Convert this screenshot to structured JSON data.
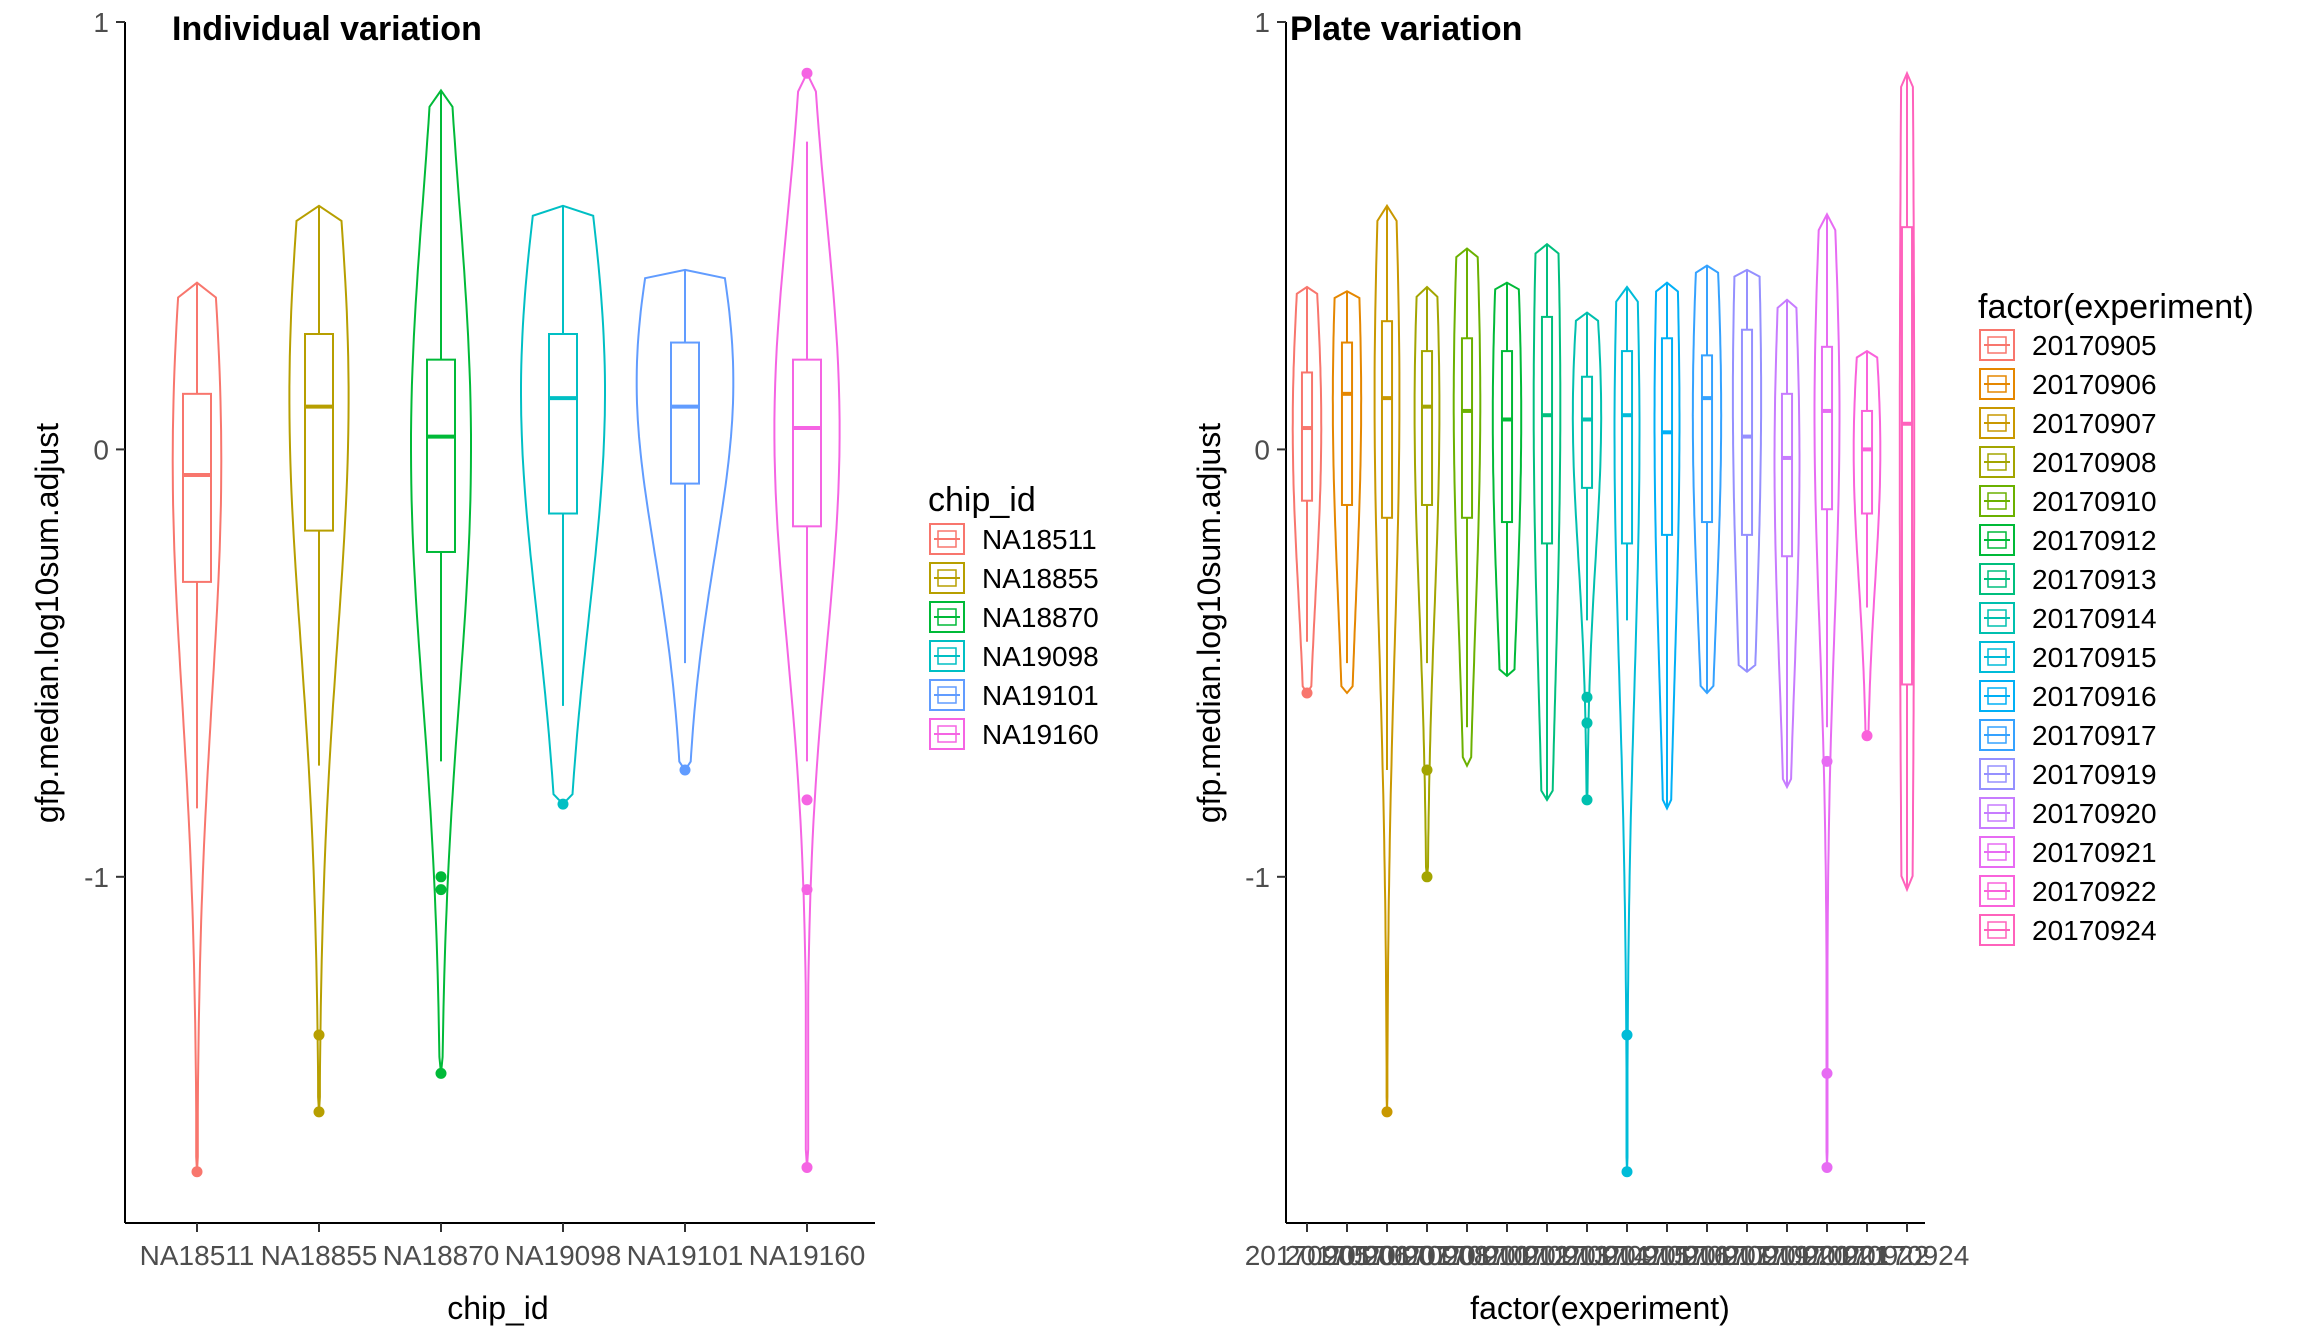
{
  "chart_data": [
    {
      "type": "violin",
      "title": "Individual variation",
      "xlabel": "chip_id",
      "ylabel": "gfp.median.log10sum.adjust",
      "ylim": [
        -1.81,
        1.0
      ],
      "yticks": [
        1,
        0,
        -1
      ],
      "ytick_labels": [
        "1",
        "0",
        "-1"
      ],
      "legend_title": "chip_id",
      "legend_position": "right",
      "grid": false,
      "series": [
        {
          "name": "NA18511",
          "color": "#F8766D",
          "min": -1.69,
          "max": 0.39,
          "q1": -0.31,
          "median": -0.06,
          "q3": 0.13,
          "whisker_low": -0.84,
          "whisker_high": 0.39,
          "outliers": [
            -1.69
          ],
          "width": 0.45,
          "bulge": 0.2
        },
        {
          "name": "NA18855",
          "color": "#B79F00",
          "min": -1.55,
          "max": 0.57,
          "q1": -0.19,
          "median": 0.1,
          "q3": 0.27,
          "whisker_low": -0.74,
          "whisker_high": 0.57,
          "outliers": [
            -1.37,
            -1.55
          ],
          "width": 0.55,
          "bulge": 0.25
        },
        {
          "name": "NA18870",
          "color": "#00BA38",
          "min": -1.46,
          "max": 0.84,
          "q1": -0.24,
          "median": 0.03,
          "q3": 0.21,
          "whisker_low": -0.73,
          "whisker_high": 0.84,
          "outliers": [
            -1.0,
            -1.03,
            -1.46
          ],
          "width": 0.55,
          "bulge": 0.05
        },
        {
          "name": "NA19098",
          "color": "#00BFC4",
          "min": -0.83,
          "max": 0.57,
          "q1": -0.15,
          "median": 0.12,
          "q3": 0.27,
          "whisker_low": -0.6,
          "whisker_high": 0.57,
          "outliers": [
            -0.83
          ],
          "width": 0.78,
          "bulge": 0.25
        },
        {
          "name": "NA19101",
          "color": "#619CFF",
          "min": -0.75,
          "max": 0.42,
          "q1": -0.08,
          "median": 0.1,
          "q3": 0.25,
          "whisker_low": -0.5,
          "whisker_high": 0.42,
          "outliers": [
            -0.75
          ],
          "width": 0.9,
          "bulge": 0.32
        },
        {
          "name": "NA19160",
          "color": "#F564E3",
          "min": -1.68,
          "max": 0.88,
          "q1": -0.18,
          "median": 0.05,
          "q3": 0.21,
          "whisker_low": -0.73,
          "whisker_high": 0.72,
          "outliers": [
            -0.82,
            -1.03,
            -1.68,
            0.88
          ],
          "width": 0.6,
          "bulge": 0.1
        }
      ]
    },
    {
      "type": "violin",
      "title": "Plate variation",
      "xlabel": "factor(experiment)",
      "ylabel": "gfp.median.log10sum.adjust",
      "ylim": [
        -1.81,
        1.0
      ],
      "yticks": [
        1,
        0,
        -1
      ],
      "ytick_labels": [
        "1",
        "0",
        "-1"
      ],
      "legend_title": "factor(experiment)",
      "legend_position": "right",
      "grid": false,
      "series": [
        {
          "name": "20170905",
          "color": "#F8766D",
          "min": -0.57,
          "max": 0.38,
          "q1": -0.12,
          "median": 0.05,
          "q3": 0.18,
          "whisker_low": -0.45,
          "whisker_high": 0.38,
          "outliers": [
            -0.57
          ],
          "width": 0.8,
          "bulge": 0.1
        },
        {
          "name": "20170906",
          "color": "#E58700",
          "min": -0.57,
          "max": 0.37,
          "q1": -0.13,
          "median": 0.13,
          "q3": 0.25,
          "whisker_low": -0.5,
          "whisker_high": 0.37,
          "outliers": [],
          "width": 0.8,
          "bulge": 0.2
        },
        {
          "name": "20170907",
          "color": "#C99800",
          "min": -1.55,
          "max": 0.57,
          "q1": -0.16,
          "median": 0.12,
          "q3": 0.3,
          "whisker_low": -0.75,
          "whisker_high": 0.57,
          "outliers": [
            -1.55
          ],
          "width": 0.7,
          "bulge": 0.15
        },
        {
          "name": "20170908",
          "color": "#A3A500",
          "min": -1.0,
          "max": 0.38,
          "q1": -0.13,
          "median": 0.1,
          "q3": 0.23,
          "whisker_low": -0.5,
          "whisker_high": 0.38,
          "outliers": [
            -0.75,
            -1.0
          ],
          "width": 0.7,
          "bulge": 0.15
        },
        {
          "name": "20170910",
          "color": "#6BB100",
          "min": -0.74,
          "max": 0.47,
          "q1": -0.16,
          "median": 0.09,
          "q3": 0.26,
          "whisker_low": -0.65,
          "whisker_high": 0.47,
          "outliers": [],
          "width": 0.75,
          "bulge": 0.2
        },
        {
          "name": "20170912",
          "color": "#00BA38",
          "min": -0.53,
          "max": 0.39,
          "q1": -0.17,
          "median": 0.07,
          "q3": 0.23,
          "whisker_low": -0.53,
          "whisker_high": 0.39,
          "outliers": [],
          "width": 0.8,
          "bulge": 0.15
        },
        {
          "name": "20170913",
          "color": "#00BF7D",
          "min": -0.82,
          "max": 0.48,
          "q1": -0.22,
          "median": 0.08,
          "q3": 0.31,
          "whisker_low": -0.82,
          "whisker_high": 0.48,
          "outliers": [],
          "width": 0.75,
          "bulge": 0.15
        },
        {
          "name": "20170914",
          "color": "#00C0AF",
          "min": -0.82,
          "max": 0.32,
          "q1": -0.09,
          "median": 0.07,
          "q3": 0.17,
          "whisker_low": -0.4,
          "whisker_high": 0.32,
          "outliers": [
            -0.58,
            -0.64,
            -0.82
          ],
          "width": 0.8,
          "bulge": 0.2
        },
        {
          "name": "20170915",
          "color": "#00BCD8",
          "min": -1.69,
          "max": 0.38,
          "q1": -0.22,
          "median": 0.08,
          "q3": 0.23,
          "whisker_low": -0.4,
          "whisker_high": 0.38,
          "outliers": [
            -1.37,
            -1.69
          ],
          "width": 0.7,
          "bulge": 0.1
        },
        {
          "name": "20170916",
          "color": "#00B0F6",
          "min": -0.84,
          "max": 0.39,
          "q1": -0.2,
          "median": 0.04,
          "q3": 0.26,
          "whisker_low": -0.84,
          "whisker_high": 0.39,
          "outliers": [],
          "width": 0.7,
          "bulge": 0.1
        },
        {
          "name": "20170917",
          "color": "#35A2FF",
          "min": -0.57,
          "max": 0.43,
          "q1": -0.17,
          "median": 0.12,
          "q3": 0.22,
          "whisker_low": -0.57,
          "whisker_high": 0.43,
          "outliers": [],
          "width": 0.8,
          "bulge": 0.2
        },
        {
          "name": "20170919",
          "color": "#9590FF",
          "min": -0.52,
          "max": 0.42,
          "q1": -0.2,
          "median": 0.03,
          "q3": 0.28,
          "whisker_low": -0.52,
          "whisker_high": 0.42,
          "outliers": [],
          "width": 0.8,
          "bulge": 0.25
        },
        {
          "name": "20170920",
          "color": "#C77CFF",
          "min": -0.79,
          "max": 0.35,
          "q1": -0.25,
          "median": -0.02,
          "q3": 0.13,
          "whisker_low": -0.79,
          "whisker_high": 0.35,
          "outliers": [],
          "width": 0.7,
          "bulge": 0.1
        },
        {
          "name": "20170921",
          "color": "#E76BF3",
          "min": -1.68,
          "max": 0.55,
          "q1": -0.14,
          "median": 0.09,
          "q3": 0.24,
          "whisker_low": -0.65,
          "whisker_high": 0.55,
          "outliers": [
            -0.73,
            -1.46,
            -1.68
          ],
          "width": 0.7,
          "bulge": 0.1
        },
        {
          "name": "20170922",
          "color": "#FA62DB",
          "min": -0.67,
          "max": 0.23,
          "q1": -0.15,
          "median": 0.0,
          "q3": 0.09,
          "whisker_low": -0.37,
          "whisker_high": 0.23,
          "outliers": [
            -0.67
          ],
          "width": 0.75,
          "bulge": 0.15
        },
        {
          "name": "20170924",
          "color": "#FF62BC",
          "min": -1.03,
          "max": 0.88,
          "q1": -0.55,
          "median": 0.06,
          "q3": 0.52,
          "whisker_low": -1.03,
          "whisker_high": 0.88,
          "outliers": [],
          "width": 0.4,
          "bulge": 0.0
        }
      ]
    }
  ]
}
